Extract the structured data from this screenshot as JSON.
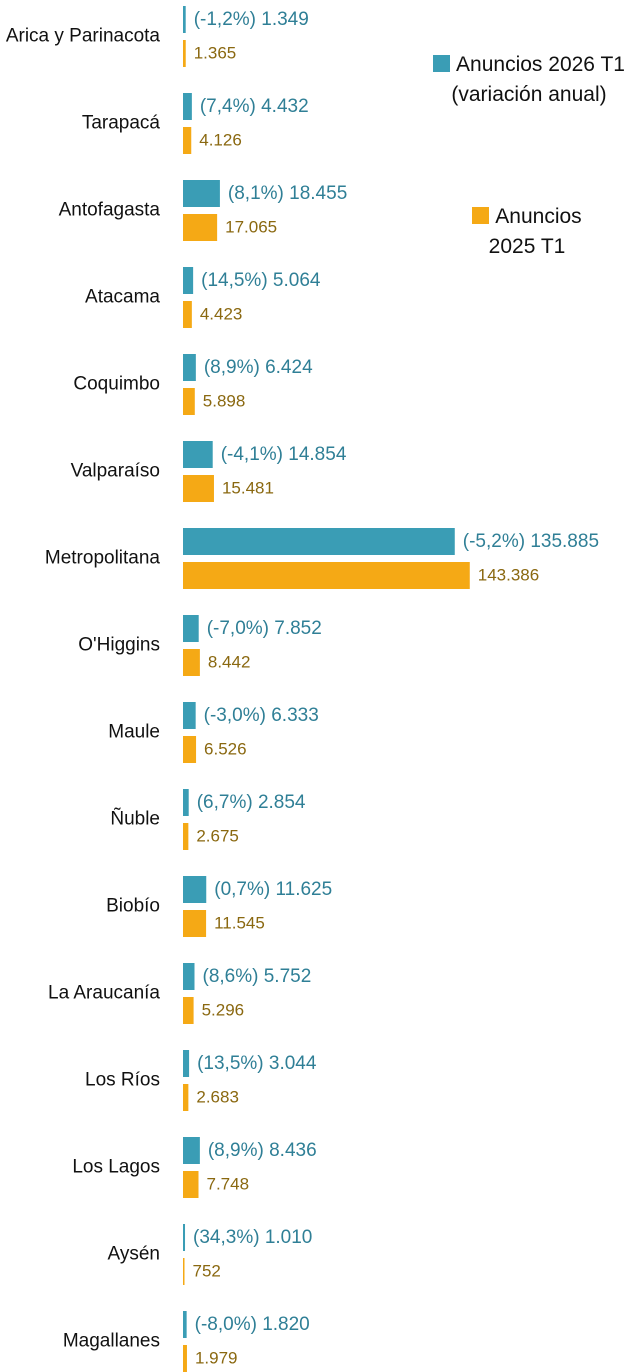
{
  "chart_data": {
    "type": "bar",
    "orientation": "horizontal",
    "categories": [
      "Arica y Parinacota",
      "Tarapacá",
      "Antofagasta",
      "Atacama",
      "Coquimbo",
      "Valparaíso",
      "Metropolitana",
      "O'Higgins",
      "Maule",
      "Ñuble",
      "Biobío",
      "La Araucanía",
      "Los Ríos",
      "Los Lagos",
      "Aysén",
      "Magallanes"
    ],
    "series": [
      {
        "name": "Anuncios 2026 T1 (variación anual)",
        "color": "#3a9db5",
        "values": [
          1349,
          4432,
          18455,
          5064,
          6424,
          14854,
          135885,
          7852,
          6333,
          2854,
          11625,
          5752,
          3044,
          8436,
          1010,
          1820
        ],
        "value_labels": [
          "(-1,2%) 1.349",
          "(7,4%) 4.432",
          "(8,1%) 18.455",
          "(14,5%) 5.064",
          "(8,9%) 6.424",
          "(-4,1%) 14.854",
          "(-5,2%) 135.885",
          "(-7,0%) 7.852",
          "(-3,0%) 6.333",
          "(6,7%) 2.854",
          "(0,7%) 11.625",
          "(8,6%) 5.752",
          "(13,5%) 3.044",
          "(8,9%) 8.436",
          "(34,3%) 1.010",
          "(-8,0%) 1.820"
        ]
      },
      {
        "name": "Anuncios 2025 T1",
        "color": "#f5a915",
        "values": [
          1365,
          4126,
          17065,
          4423,
          5898,
          15481,
          143386,
          8442,
          6526,
          2675,
          11545,
          5296,
          2683,
          7748,
          752,
          1979
        ],
        "value_labels": [
          "1.365",
          "4.126",
          "17.065",
          "4.423",
          "5.898",
          "15.481",
          "143.386",
          "8.442",
          "6.526",
          "2.675",
          "11.545",
          "5.296",
          "2.683",
          "7.748",
          "752",
          "1.979"
        ]
      }
    ],
    "xlim": [
      0,
      150000
    ],
    "legend": "top-right"
  }
}
